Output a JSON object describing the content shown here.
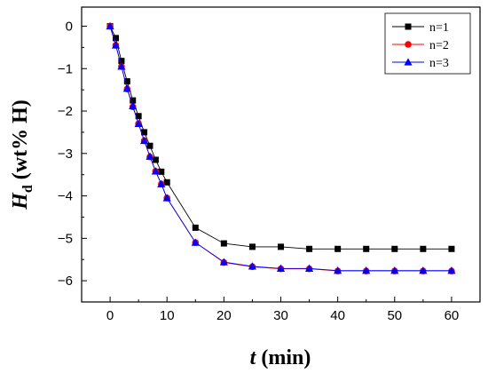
{
  "chart_data": {
    "type": "line",
    "xlabel": {
      "var": "t",
      "unit": " (min)"
    },
    "ylabel": {
      "var": "H",
      "sub": "d",
      "unit": " (wt% H)"
    },
    "xlim": [
      -5,
      65
    ],
    "ylim": [
      -6.5,
      0.45
    ],
    "xticks": [
      0,
      10,
      20,
      30,
      40,
      50,
      60
    ],
    "yticks": [
      0,
      -1,
      -2,
      -3,
      -4,
      -5,
      -6
    ],
    "grid": false,
    "legend_position": "top-right",
    "series": [
      {
        "name": "n=1",
        "color": "#000000",
        "marker": "square",
        "x": [
          0,
          1,
          2,
          3,
          4,
          5,
          6,
          7,
          8,
          9,
          10,
          15,
          20,
          25,
          30,
          35,
          40,
          45,
          50,
          55,
          60
        ],
        "y": [
          0,
          -0.28,
          -0.82,
          -1.3,
          -1.75,
          -2.12,
          -2.5,
          -2.82,
          -3.15,
          -3.43,
          -3.68,
          -4.75,
          -5.12,
          -5.2,
          -5.2,
          -5.25,
          -5.25,
          -5.25,
          -5.25,
          -5.25,
          -5.25
        ]
      },
      {
        "name": "n=2",
        "color": "#ff0000",
        "marker": "circle",
        "x": [
          0,
          1,
          2,
          3,
          4,
          5,
          6,
          7,
          8,
          9,
          10,
          15,
          20,
          25,
          30,
          35,
          40,
          45,
          50,
          55,
          60
        ],
        "y": [
          0,
          -0.45,
          -0.95,
          -1.48,
          -1.9,
          -2.3,
          -2.7,
          -3.08,
          -3.42,
          -3.72,
          -4.05,
          -5.1,
          -5.57,
          -5.67,
          -5.72,
          -5.72,
          -5.77,
          -5.77,
          -5.77,
          -5.77,
          -5.77
        ]
      },
      {
        "name": "n=3",
        "color": "#0000ff",
        "marker": "triangle",
        "x": [
          0,
          1,
          2,
          3,
          4,
          5,
          6,
          7,
          8,
          9,
          10,
          15,
          20,
          25,
          30,
          35,
          40,
          45,
          50,
          55,
          60
        ],
        "y": [
          0,
          -0.45,
          -0.95,
          -1.47,
          -1.88,
          -2.3,
          -2.7,
          -3.07,
          -3.42,
          -3.72,
          -4.05,
          -5.1,
          -5.56,
          -5.66,
          -5.71,
          -5.71,
          -5.76,
          -5.76,
          -5.76,
          -5.76,
          -5.76
        ]
      }
    ]
  }
}
